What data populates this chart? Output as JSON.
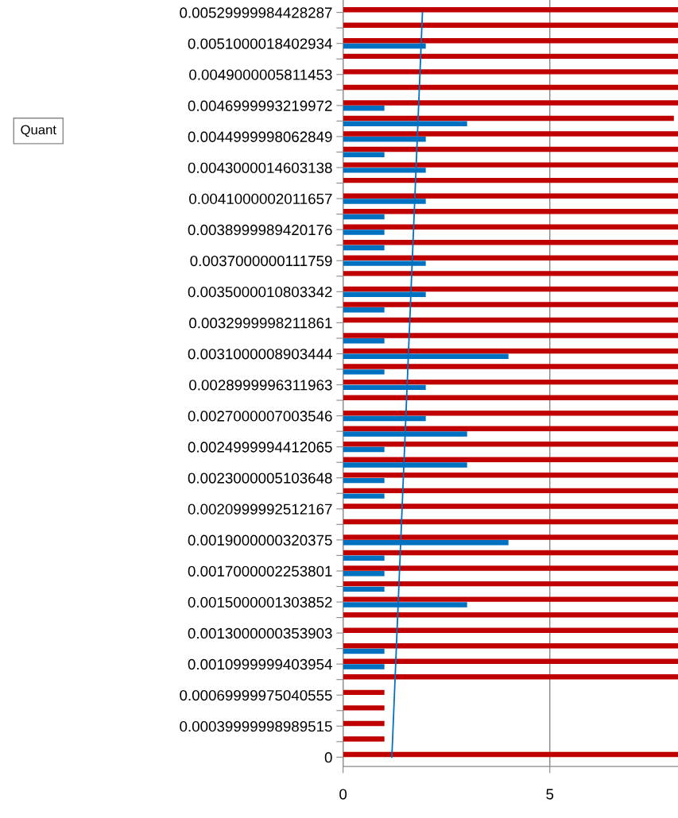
{
  "chart_data": {
    "type": "bar",
    "orientation": "horizontal",
    "categories": [
      "0.00529999984428287",
      null,
      "0.0051000018402934",
      null,
      "0.0049000005811453",
      null,
      "0.0046999993219972",
      null,
      "0.0044999998062849",
      null,
      "0.0043000014603138",
      null,
      "0.0041000002011657",
      null,
      "0.0038999989420176",
      null,
      "0.0037000000111759",
      null,
      "0.0035000010803342",
      null,
      "0.0032999998211861",
      null,
      "0.0031000008903444",
      null,
      "0.0028999996311963",
      null,
      "0.0027000007003546",
      null,
      "0.0024999994412065",
      null,
      "0.0023000005103648",
      null,
      "0.0020999992512167",
      null,
      "0.0019000000320375",
      null,
      "0.0017000002253801",
      null,
      "0.0015000001303852",
      null,
      "0.0013000000353903",
      null,
      "0.0010999999403954",
      null,
      "0.00069999975040555",
      null,
      "0.00039999998989515",
      null,
      "0"
    ],
    "series": [
      {
        "color": "#c00000",
        "values": [
          8.1,
          8.1,
          8.1,
          8.1,
          8.1,
          8.1,
          8.1,
          8.0,
          8.1,
          8.1,
          8.1,
          8.1,
          8.1,
          8.1,
          8.1,
          8.1,
          8.1,
          8.1,
          8.1,
          8.1,
          8.1,
          8.1,
          8.1,
          8.1,
          8.1,
          8.1,
          8.1,
          8.1,
          8.1,
          8.1,
          8.1,
          8.1,
          8.1,
          8.1,
          8.1,
          8.1,
          8.1,
          8.1,
          8.1,
          8.1,
          8.1,
          8.1,
          8.1,
          8.1,
          1,
          1,
          1,
          1,
          8.1
        ]
      },
      {
        "color": "#0070c0",
        "values": [
          null,
          null,
          2,
          null,
          null,
          null,
          1,
          3,
          2,
          1,
          2,
          null,
          2,
          1,
          1,
          1,
          2,
          null,
          2,
          1,
          null,
          1,
          4,
          1,
          2,
          null,
          2,
          3,
          1,
          3,
          1,
          1,
          null,
          null,
          4,
          1,
          1,
          1,
          3,
          null,
          null,
          1,
          1,
          null,
          null,
          null,
          null,
          null,
          null
        ]
      },
      {
        "type": "line",
        "color": "#0070c0",
        "x": [
          "0",
          "0.00529999984428287"
        ],
        "values": [
          1.18,
          1.92
        ]
      }
    ],
    "xlim": [
      0,
      8.1
    ],
    "xticks": [
      0,
      5
    ],
    "grid": "x",
    "legend": false,
    "annotations": [
      "Quant"
    ]
  }
}
